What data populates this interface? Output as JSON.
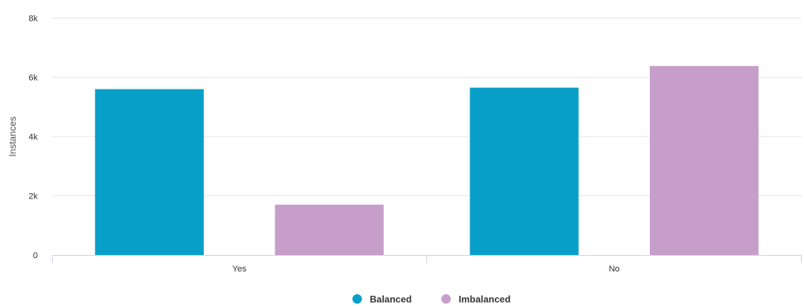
{
  "chart_data": {
    "type": "bar",
    "title": "",
    "xlabel": "",
    "ylabel": "Instances",
    "categories": [
      "Yes",
      "No"
    ],
    "series": [
      {
        "name": "Balanced",
        "color": "#08A0C8",
        "values": [
          5600,
          5650
        ]
      },
      {
        "name": "Imbalanced",
        "color": "#C69EC9",
        "values": [
          1700,
          6380
        ]
      }
    ],
    "ylim": [
      0,
      8000
    ],
    "y_ticks": [
      {
        "value": 0,
        "label": "0"
      },
      {
        "value": 2000,
        "label": "2k"
      },
      {
        "value": 4000,
        "label": "4k"
      },
      {
        "value": 6000,
        "label": "6k"
      },
      {
        "value": 8000,
        "label": "8k"
      }
    ],
    "grid": true,
    "legend_position": "bottom-center"
  }
}
